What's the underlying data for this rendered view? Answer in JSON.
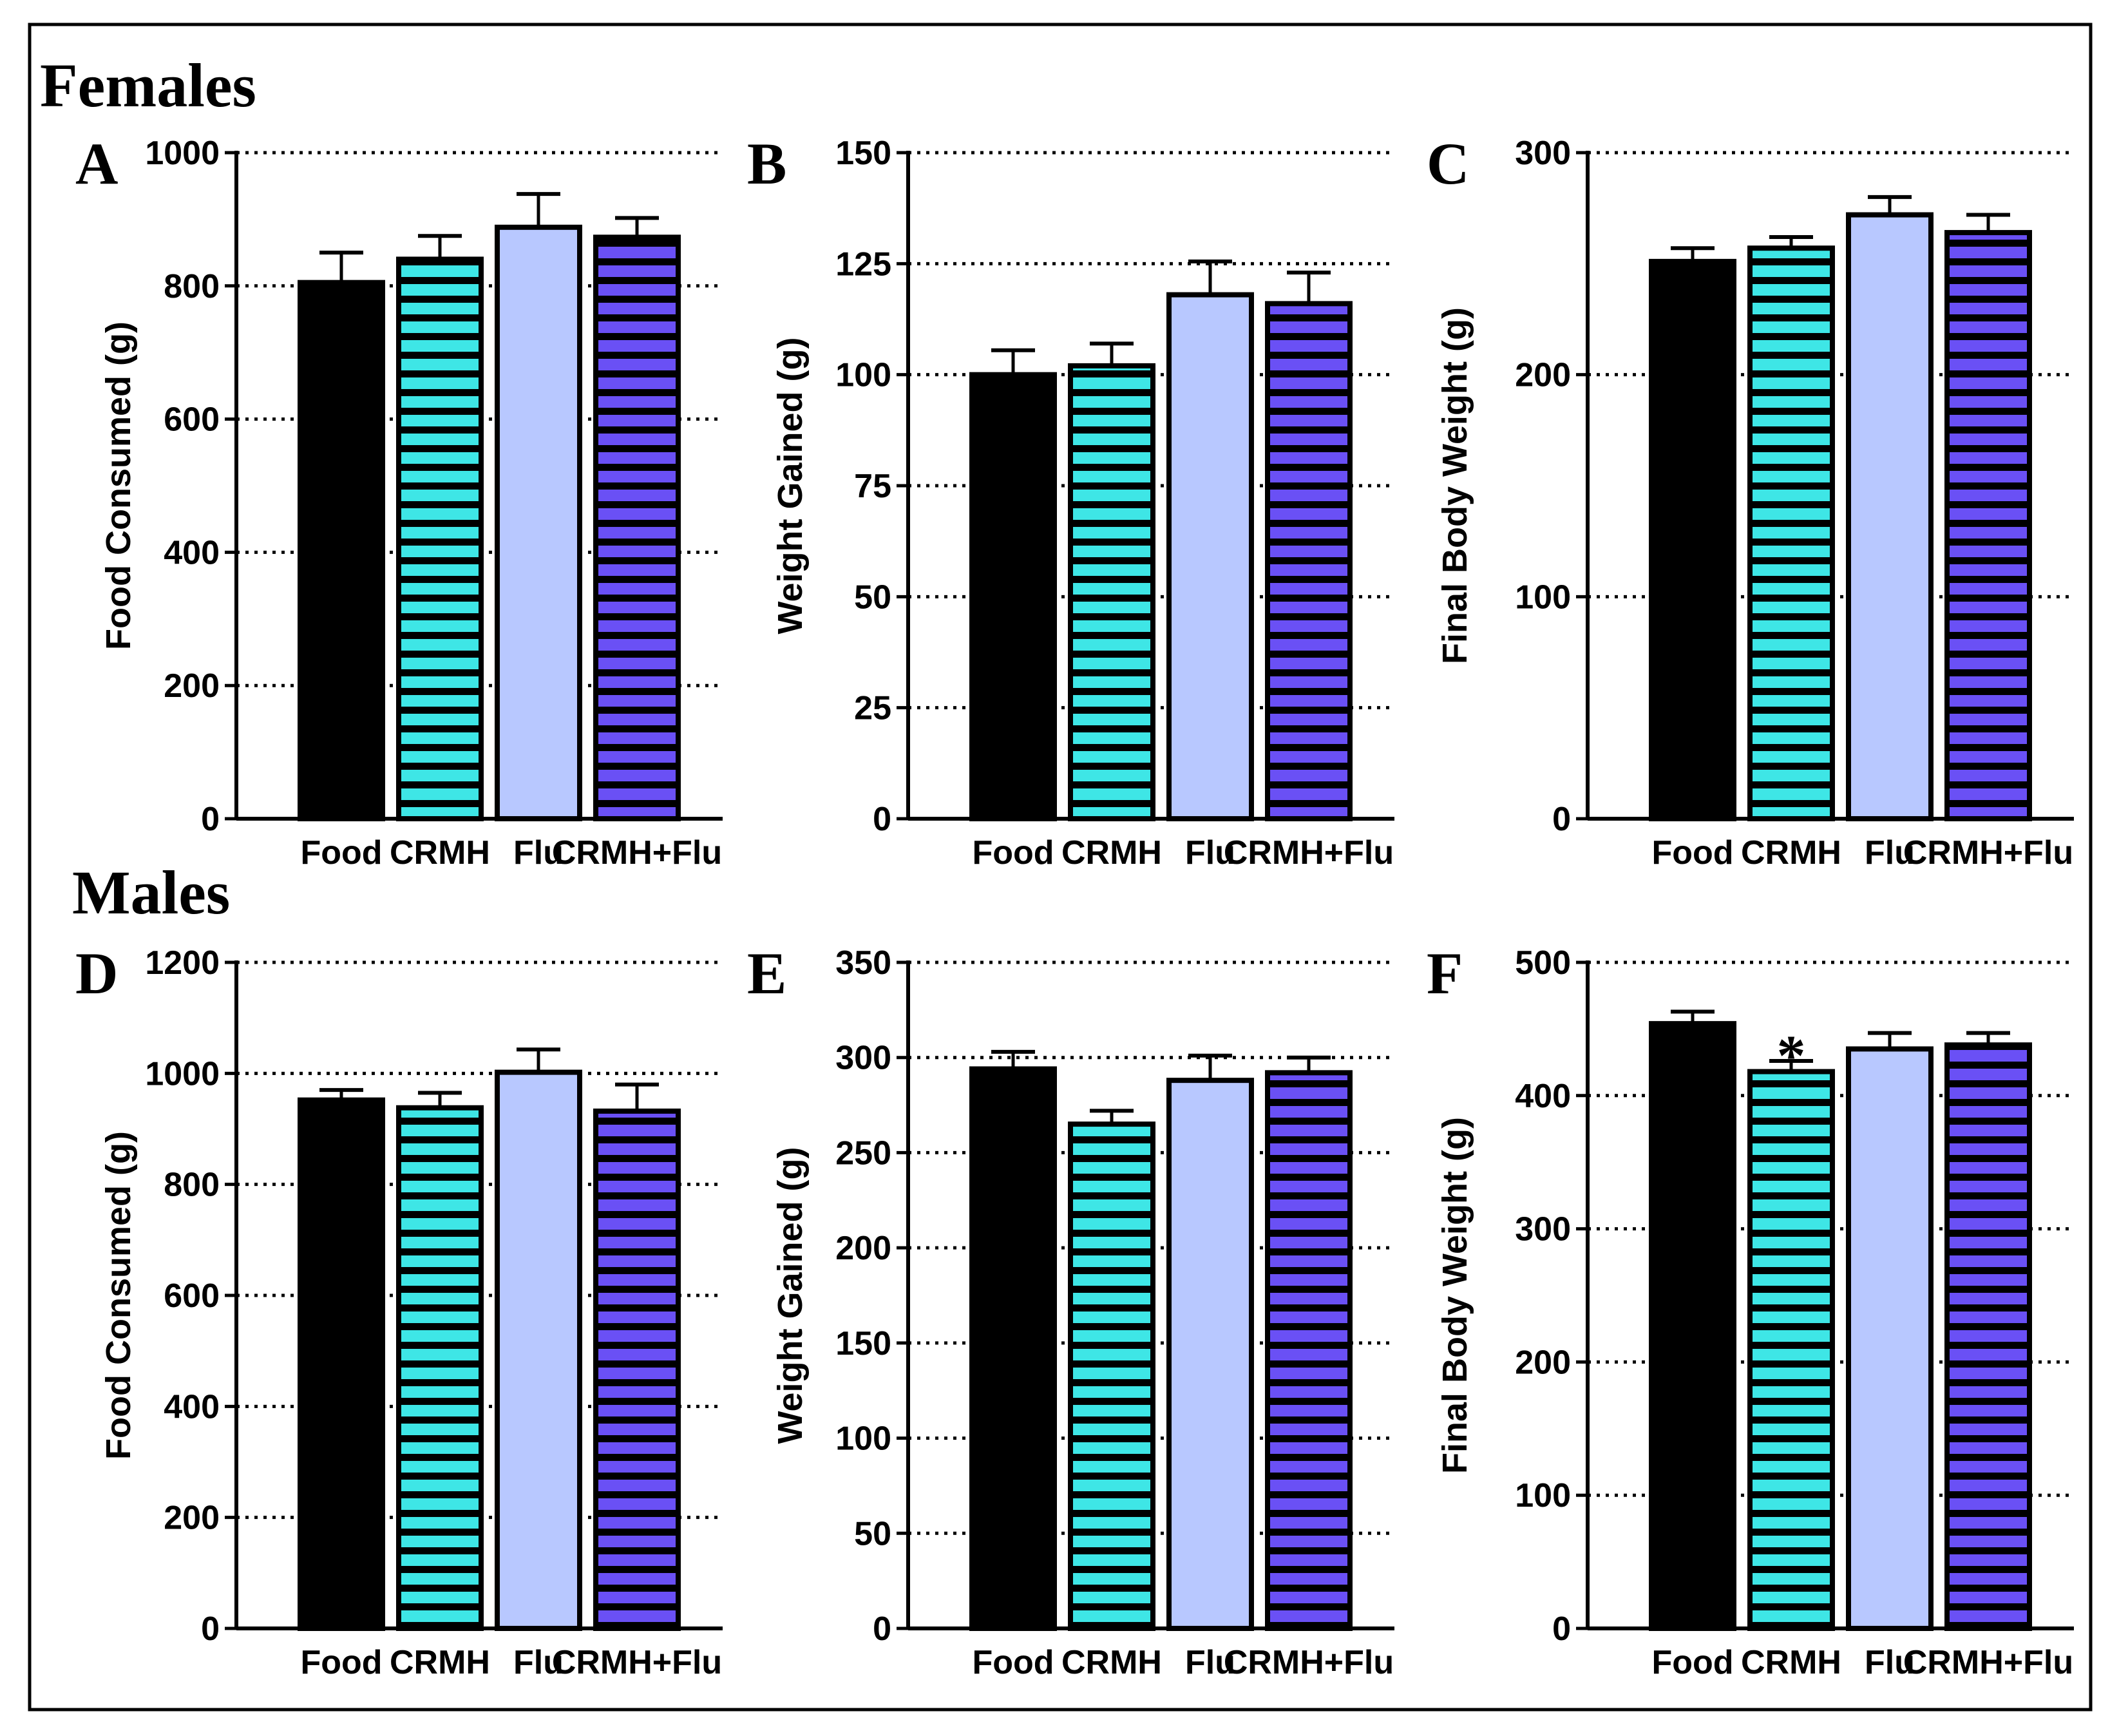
{
  "section_titles": {
    "females": "Females",
    "males": "Males"
  },
  "colors": {
    "Food": "#000000",
    "CRMH": "#3ee6e6",
    "Flu": "#b8c8ff",
    "CRMH+Flu": "#6a50f5",
    "stripe": "#000000"
  },
  "chart_data": [
    {
      "panel": "A",
      "type": "bar",
      "group": "Females",
      "ylabel": "Food Consumed (g)",
      "categories": [
        "Food",
        "CRMH",
        "Flu",
        "CRMH+Flu"
      ],
      "values": [
        805,
        840,
        888,
        873
      ],
      "errors": [
        45,
        35,
        50,
        29
      ],
      "ylim": [
        0,
        1000
      ],
      "yticks": [
        0,
        200,
        400,
        600,
        800,
        1000
      ],
      "yticklabels": [
        "0",
        "200",
        "400",
        "600",
        "800",
        "1000"
      ],
      "grid": "dotted horizontal",
      "annotations": []
    },
    {
      "panel": "B",
      "type": "bar",
      "group": "Females",
      "ylabel": "Weight Gained (g)",
      "categories": [
        "Food",
        "CRMH",
        "Flu",
        "CRMH+Flu"
      ],
      "values": [
        100,
        102,
        118,
        116
      ],
      "errors": [
        5.5,
        5,
        7.5,
        7
      ],
      "ylim": [
        0,
        150
      ],
      "yticks": [
        0,
        25,
        50,
        75,
        100,
        125,
        150
      ],
      "yticklabels": [
        "0",
        "25",
        "50",
        "75",
        "100",
        "125",
        "150"
      ],
      "grid": "dotted horizontal",
      "annotations": []
    },
    {
      "panel": "C",
      "type": "bar",
      "group": "Females",
      "ylabel": "Final Body Weight (g)",
      "categories": [
        "Food",
        "CRMH",
        "Flu",
        "CRMH+Flu"
      ],
      "values": [
        251,
        257,
        272,
        264
      ],
      "errors": [
        6,
        5,
        8,
        8
      ],
      "ylim": [
        0,
        300
      ],
      "yticks": [
        0,
        100,
        200,
        300
      ],
      "yticklabels": [
        "0",
        "100",
        "200",
        "300"
      ],
      "grid": "dotted horizontal",
      "annotations": []
    },
    {
      "panel": "D",
      "type": "bar",
      "group": "Males",
      "ylabel": "Food Consumed (g)",
      "categories": [
        "Food",
        "CRMH",
        "Flu",
        "CRMH+Flu"
      ],
      "values": [
        952,
        938,
        1002,
        932
      ],
      "errors": [
        18,
        27,
        41,
        48
      ],
      "ylim": [
        0,
        1200
      ],
      "yticks": [
        0,
        200,
        400,
        600,
        800,
        1000,
        1200
      ],
      "yticklabels": [
        "0",
        "200",
        "400",
        "600",
        "800",
        "1000",
        "1200"
      ],
      "grid": "dotted horizontal",
      "annotations": []
    },
    {
      "panel": "E",
      "type": "bar",
      "group": "Males",
      "ylabel": "Weight Gained (g)",
      "categories": [
        "Food",
        "CRMH",
        "Flu",
        "CRMH+Flu"
      ],
      "values": [
        294,
        265,
        288,
        292
      ],
      "errors": [
        9,
        7,
        13,
        8
      ],
      "ylim": [
        0,
        350
      ],
      "yticks": [
        0,
        50,
        100,
        150,
        200,
        250,
        300,
        350
      ],
      "yticklabels": [
        "0",
        "50",
        "100",
        "150",
        "200",
        "250",
        "300",
        "350"
      ],
      "grid": "dotted horizontal",
      "annotations": []
    },
    {
      "panel": "F",
      "type": "bar",
      "group": "Males",
      "ylabel": "Final Body Weight (g)",
      "categories": [
        "Food",
        "CRMH",
        "Flu",
        "CRMH+Flu"
      ],
      "values": [
        454,
        418,
        435,
        438
      ],
      "errors": [
        9,
        8,
        12,
        9
      ],
      "ylim": [
        0,
        500
      ],
      "yticks": [
        0,
        100,
        200,
        300,
        400,
        500
      ],
      "yticklabels": [
        "0",
        "100",
        "200",
        "300",
        "400",
        "500"
      ],
      "grid": "dotted horizontal",
      "annotations": [
        {
          "category": "CRMH",
          "text": "*"
        }
      ]
    }
  ]
}
